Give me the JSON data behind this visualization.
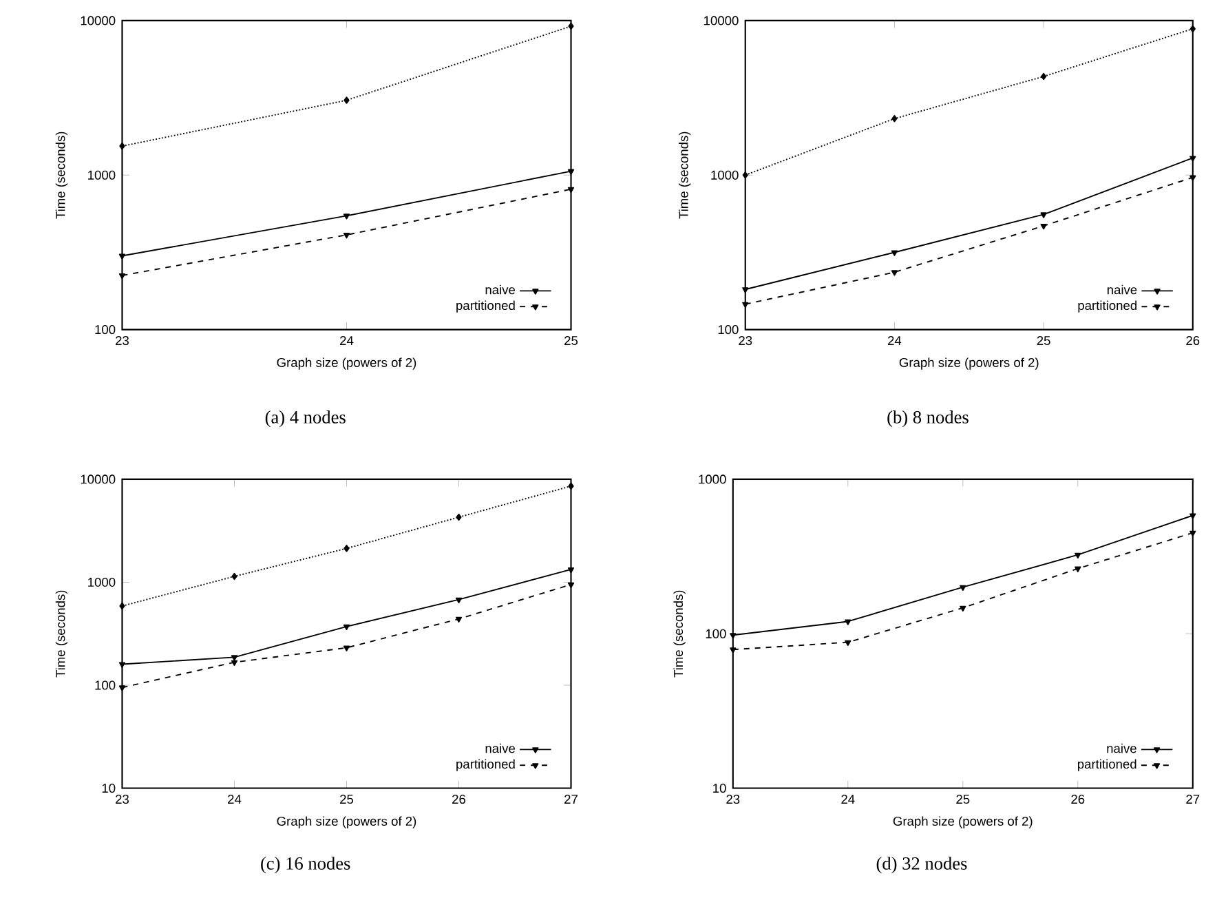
{
  "chart_data": [
    {
      "type": "line",
      "title": "(a) 4 nodes",
      "xlabel": "Graph size (powers of 2)",
      "ylabel": "Time (seconds)",
      "x": [
        23,
        24,
        25
      ],
      "xlim": [
        23,
        25
      ],
      "xticks": [
        23,
        24,
        25
      ],
      "ylim": [
        100,
        10000
      ],
      "yticks": [
        100,
        1000,
        10000
      ],
      "log": "y",
      "grid": false,
      "legend": "bottom right",
      "series": [
        {
          "color": "#000000",
          "marker": "diamond",
          "line_style": "dotted",
          "values": [
            1540,
            3050,
            9200
          ]
        },
        {
          "name": "naive",
          "color": "#000000",
          "marker": "triangle",
          "line_style": "solid",
          "values": [
            300,
            545,
            1060
          ]
        },
        {
          "name": "partitioned",
          "color": "#000000",
          "marker": "triangle",
          "line_style": "dashed",
          "values": [
            224,
            410,
            810
          ]
        }
      ]
    },
    {
      "type": "line",
      "title": "(b) 8 nodes",
      "xlabel": "Graph size (powers of 2)",
      "ylabel": "Time (seconds)",
      "x": [
        23,
        24,
        25,
        26
      ],
      "xlim": [
        23,
        26
      ],
      "xticks": [
        23,
        24,
        25,
        26
      ],
      "ylim": [
        100,
        10000
      ],
      "yticks": [
        100,
        1000,
        10000
      ],
      "log": "y",
      "grid": false,
      "legend": "bottom right",
      "series": [
        {
          "color": "#000000",
          "marker": "diamond",
          "line_style": "dotted",
          "values": [
            1000,
            2320,
            4350,
            8850
          ]
        },
        {
          "name": "naive",
          "color": "#000000",
          "marker": "triangle",
          "line_style": "solid",
          "values": [
            182,
            316,
            556,
            1290
          ]
        },
        {
          "name": "partitioned",
          "color": "#000000",
          "marker": "triangle",
          "line_style": "dashed",
          "values": [
            146,
            235,
            469,
            966
          ]
        }
      ]
    },
    {
      "type": "line",
      "title": "(c) 16 nodes",
      "xlabel": "Graph size (powers of 2)",
      "ylabel": "Time (seconds)",
      "x": [
        23,
        24,
        25,
        26,
        27
      ],
      "xlim": [
        23,
        27
      ],
      "xticks": [
        23,
        24,
        25,
        26,
        27
      ],
      "ylim": [
        10,
        10000
      ],
      "yticks": [
        10,
        100,
        1000,
        10000
      ],
      "log": "y",
      "grid": false,
      "legend": "bottom right",
      "series": [
        {
          "color": "#000000",
          "marker": "diamond",
          "line_style": "dotted",
          "values": [
            588,
            1140,
            2130,
            4280,
            8580
          ]
        },
        {
          "name": "naive",
          "color": "#000000",
          "marker": "triangle",
          "line_style": "solid",
          "values": [
            160,
            187,
            371,
            678,
            1330
          ]
        },
        {
          "name": "partitioned",
          "color": "#000000",
          "marker": "triangle",
          "line_style": "dashed",
          "values": [
            95,
            167,
            231,
            440,
            950
          ]
        }
      ]
    },
    {
      "type": "line",
      "title": "(d) 32 nodes",
      "xlabel": "Graph size (powers of 2)",
      "ylabel": "Time (seconds)",
      "x": [
        23,
        24,
        25,
        26,
        27
      ],
      "xlim": [
        23,
        27
      ],
      "xticks": [
        23,
        24,
        25,
        26,
        27
      ],
      "ylim": [
        10,
        1000
      ],
      "yticks": [
        10,
        100,
        1000
      ],
      "log": "y",
      "grid": false,
      "legend": "bottom right",
      "series": [
        {
          "name": "naive",
          "color": "#000000",
          "marker": "triangle",
          "line_style": "solid",
          "values": [
            98,
            120,
            200,
            324,
            583
          ]
        },
        {
          "name": "partitioned",
          "color": "#000000",
          "marker": "triangle",
          "line_style": "dashed",
          "values": [
            79,
            88,
            147,
            264,
            450
          ]
        }
      ]
    }
  ]
}
